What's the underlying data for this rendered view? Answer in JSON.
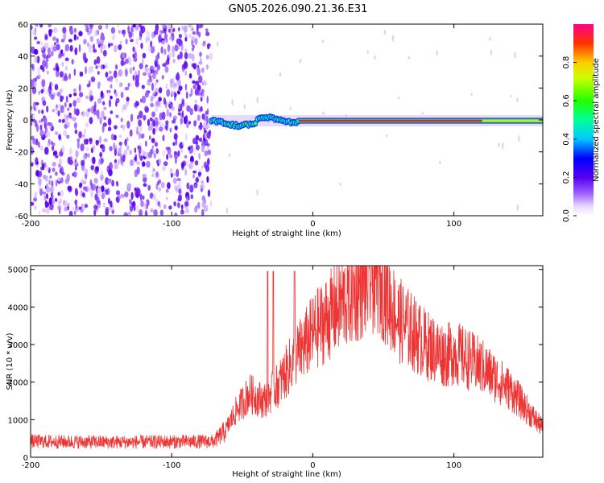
{
  "title": "GN05.2026.090.21.36.E31",
  "chart_data": [
    {
      "type": "heatmap",
      "name": "spectrogram",
      "xlabel": "Height of straight line (km)",
      "ylabel": "Frequency (Hz)",
      "xlim": [
        -200,
        163
      ],
      "ylim": [
        -60,
        60
      ],
      "xticks": [
        "-200",
        "-100",
        "0",
        "100"
      ],
      "xtick_values": [
        -200,
        -100,
        0,
        100
      ],
      "yticks": [
        "60",
        "40",
        "20",
        "0",
        "-20",
        "-40",
        "-60"
      ],
      "ytick_values": [
        60,
        40,
        20,
        0,
        -20,
        -40,
        -60
      ],
      "noise_region_km": [
        -200,
        -72
      ],
      "signal_band_freq_hz": [
        -3,
        2
      ],
      "signal_start_km": -72,
      "colorbar": {
        "label": "Normalized spectral amplitude",
        "range": [
          0,
          1
        ],
        "ticks": [
          "0.0",
          "0.2",
          "0.4",
          "0.6",
          "0.8"
        ],
        "tick_values": [
          0.0,
          0.2,
          0.4,
          0.6,
          0.8
        ]
      }
    },
    {
      "type": "line",
      "name": "snr",
      "xlabel": "Height of straight line (km)",
      "ylabel": "SNR (10 * v/v)",
      "xlim": [
        -200,
        163
      ],
      "ylim": [
        0,
        5100
      ],
      "xticks": [
        "-200",
        "-100",
        "0",
        "100"
      ],
      "xtick_values": [
        -200,
        -100,
        0,
        100
      ],
      "yticks": [
        "0",
        "1000",
        "2000",
        "3000",
        "4000",
        "5000"
      ],
      "ytick_values": [
        0,
        1000,
        2000,
        3000,
        4000,
        5000
      ],
      "color": "#ee3333",
      "envelope_x": [
        -200,
        -140,
        -70,
        -62,
        -55,
        -45,
        -35,
        -25,
        -20,
        -15,
        0,
        20,
        40,
        45,
        50,
        60,
        80,
        95,
        100,
        110,
        120,
        140,
        160,
        163
      ],
      "envelope_y": [
        420,
        400,
        420,
        700,
        1200,
        1700,
        1500,
        1900,
        2200,
        2500,
        3300,
        4100,
        4700,
        4800,
        4500,
        3700,
        3000,
        2700,
        2800,
        2600,
        2400,
        1800,
        900,
        800
      ],
      "spikes": [
        {
          "x": -32,
          "y": 4950
        },
        {
          "x": -28,
          "y": 4950
        },
        {
          "x": -13,
          "y": 4950
        }
      ]
    }
  ]
}
